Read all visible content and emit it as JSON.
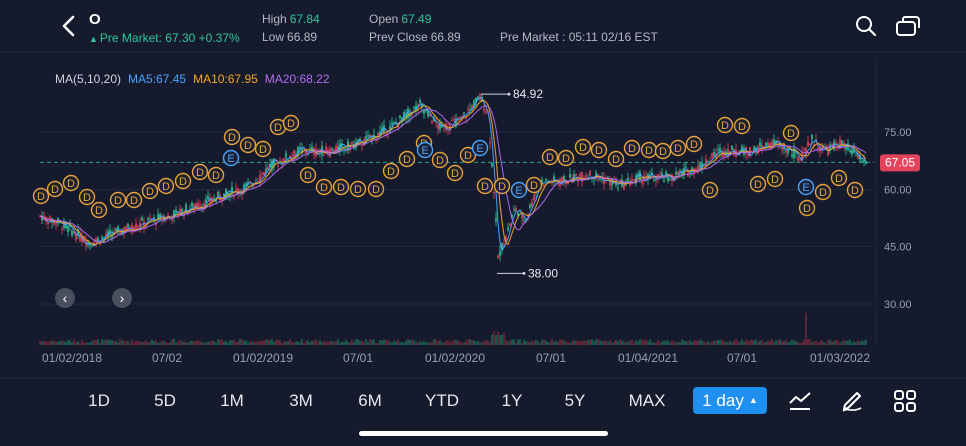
{
  "header": {
    "ticker": "O",
    "premarket_label": "Pre Market:",
    "premarket_price": "67.30",
    "premarket_change": "+0.37%",
    "high_label": "High",
    "high_value": "67.84",
    "low_label": "Low",
    "low_value": "66.89",
    "open_label": "Open",
    "open_value": "67.49",
    "prev_close_label": "Prev Close",
    "prev_close_value": "66.89",
    "session_label": "Pre Market :",
    "session_time": "05:11 02/16 EST"
  },
  "ma_legend": {
    "label": "MA(5,10,20)",
    "ma5": "MA5:67.45",
    "ma10": "MA10:67.95",
    "ma20": "MA20:68.22"
  },
  "chart_data": {
    "type": "candlestick",
    "y_ticks": [
      "75.00",
      "60.00",
      "45.00",
      "30.00"
    ],
    "ylim": [
      22,
      90
    ],
    "x_ticks": [
      "01/02/2018",
      "07/02",
      "01/02/2019",
      "07/01",
      "01/02/2020",
      "07/01",
      "01/04/2021",
      "07/01",
      "01/03/2022"
    ],
    "current_price": "67.05",
    "high_marker": "84.92",
    "low_marker": "38.00",
    "series": [
      {
        "name": "MA5",
        "color": "#4aa3ff"
      },
      {
        "name": "MA10",
        "color": "#f5a623"
      },
      {
        "name": "MA20",
        "color": "#b36cf0"
      }
    ],
    "dividend_marker": "D",
    "earnings_marker": "E"
  },
  "periods": [
    "1D",
    "5D",
    "1M",
    "3M",
    "6M",
    "YTD",
    "1Y",
    "5Y",
    "MAX"
  ],
  "interval": "1 day",
  "colors": {
    "up": "#2ec79a",
    "down": "#e4435c",
    "background": "#151a2c",
    "accent": "#1f8ff0",
    "price_tag": "#e4435c"
  },
  "icons": {
    "back": "chevron-left-icon",
    "search": "search-icon",
    "window": "window-switch-icon",
    "indicators": "indicator-icon",
    "draw": "draw-tool-icon",
    "more": "grid-icon"
  }
}
